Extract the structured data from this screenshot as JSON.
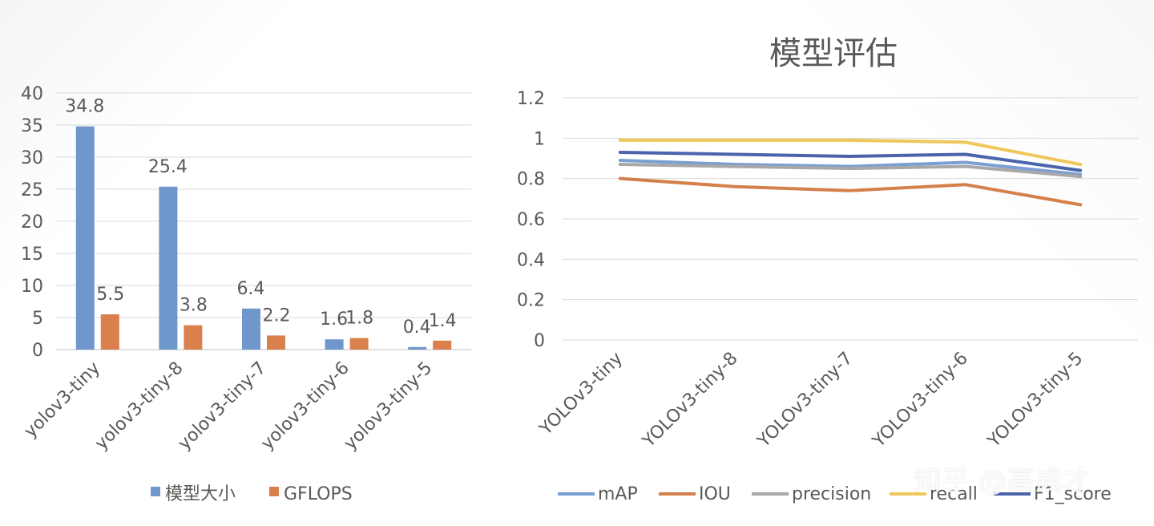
{
  "chart_data": [
    {
      "type": "bar",
      "title": "",
      "categories": [
        "yolov3-tiny",
        "yolov3-tiny-8",
        "yolov3-tiny-7",
        "yolov3-tiny-6",
        "yolov3-tiny-5"
      ],
      "series": [
        {
          "name": "模型大小",
          "values": [
            34.8,
            25.4,
            6.4,
            1.6,
            0.4
          ],
          "color": "#6f97cb"
        },
        {
          "name": "GFLOPS",
          "values": [
            5.5,
            3.8,
            2.2,
            1.8,
            1.4
          ],
          "color": "#d9804c"
        }
      ],
      "data_labels": [
        [
          "34.8",
          "25.4",
          "6.4",
          "1.6",
          "0.4"
        ],
        [
          "5.5",
          "3.8",
          "2.2",
          "1.8",
          "1.4"
        ]
      ],
      "yticks": [
        "0",
        "5",
        "10",
        "15",
        "20",
        "25",
        "30",
        "35",
        "40"
      ],
      "ylim": [
        0,
        40
      ],
      "grid": true,
      "legend": "bottom"
    },
    {
      "type": "line",
      "title": "模型评估",
      "categories": [
        "YOLOv3-tiny",
        "YOLOv3-tiny-8",
        "YOLOv3-tiny-7",
        "YOLOv3-tiny-6",
        "YOLOv3-tiny-5"
      ],
      "series": [
        {
          "name": "mAP",
          "values": [
            0.89,
            0.87,
            0.86,
            0.88,
            0.82
          ],
          "color": "#7a9fd3"
        },
        {
          "name": "IOU",
          "values": [
            0.8,
            0.76,
            0.74,
            0.77,
            0.67
          ],
          "color": "#d4804a"
        },
        {
          "name": "precision",
          "values": [
            0.87,
            0.86,
            0.85,
            0.86,
            0.81
          ],
          "color": "#a8a8a8"
        },
        {
          "name": "recall",
          "values": [
            0.99,
            0.99,
            0.99,
            0.98,
            0.87
          ],
          "color": "#f0c75a"
        },
        {
          "name": "F1_score",
          "values": [
            0.93,
            0.92,
            0.91,
            0.92,
            0.84
          ],
          "color": "#4a63ad"
        }
      ],
      "yticks": [
        "0",
        "0.2",
        "0.4",
        "0.6",
        "0.8",
        "1",
        "1.2"
      ],
      "ylim": [
        0,
        1.2
      ],
      "grid": true,
      "legend": "bottom"
    }
  ],
  "watermark": "知乎 @高成才"
}
